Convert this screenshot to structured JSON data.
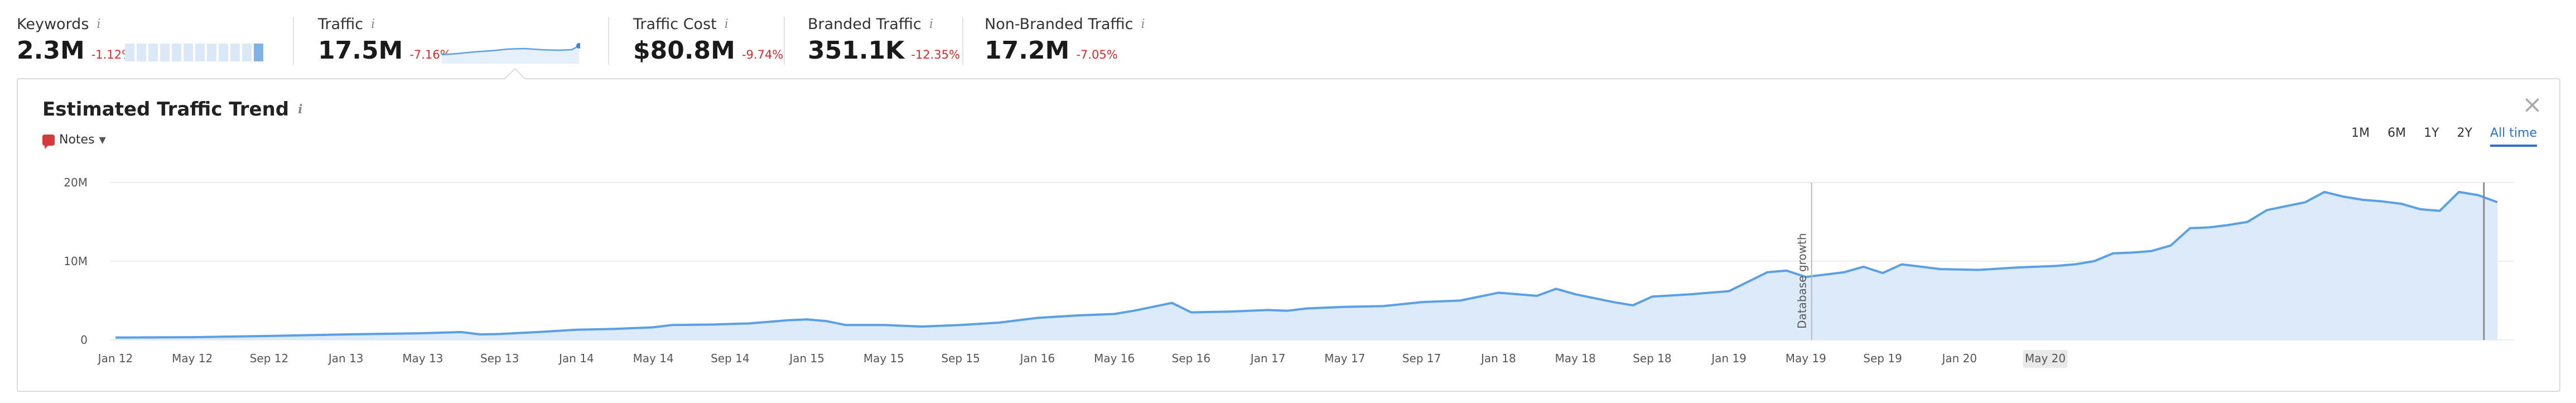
{
  "metrics": [
    {
      "label": "Keywords",
      "value": "2.3M",
      "delta": "-1.12%"
    },
    {
      "label": "Traffic",
      "value": "17.5M",
      "delta": "-7.16%"
    },
    {
      "label": "Traffic Cost",
      "value": "$80.8M",
      "delta": "-9.74%"
    },
    {
      "label": "Branded Traffic",
      "value": "351.1K",
      "delta": "-12.35%"
    },
    {
      "label": "Non-Branded Traffic",
      "value": "17.2M",
      "delta": "-7.05%"
    }
  ],
  "info_glyph": "i",
  "panel": {
    "title": "Estimated Traffic Trend",
    "notes_label": "Notes",
    "close_glyph": "×",
    "ranges": [
      "1M",
      "6M",
      "1Y",
      "2Y",
      "All time"
    ],
    "active_range": "All time"
  },
  "colors": {
    "accent": "#2f6fd1",
    "line": "#5aa0e6",
    "fill": "#dceafa",
    "negative": "#d92b2b"
  },
  "icons": {
    "close": "close-icon",
    "notes": "notes-icon",
    "info": "info-icon",
    "chevron": "chevron-down-icon"
  },
  "chart_data": {
    "type": "area",
    "title": "Estimated Traffic Trend",
    "xlabel": "",
    "ylabel": "",
    "x_ticks": [
      "Jan 12",
      "May 12",
      "Sep 12",
      "Jan 13",
      "May 13",
      "Sep 13",
      "Jan 14",
      "May 14",
      "Sep 14",
      "Jan 15",
      "May 15",
      "Sep 15",
      "Jan 16",
      "May 16",
      "Sep 16",
      "Jan 17",
      "May 17",
      "Sep 17",
      "Jan 18",
      "May 18",
      "Sep 18",
      "Jan 19",
      "May 19",
      "Sep 19",
      "Jan 20",
      "May 20"
    ],
    "y_ticks": [
      "20M",
      "10M",
      "0"
    ],
    "ylim": [
      0,
      20000000
    ],
    "grid": true,
    "annotation": {
      "label": "Database growth",
      "at_month": 88.3
    },
    "series": [
      {
        "values": [
          {
            "m": 0,
            "v": 0.3
          },
          {
            "m": 4,
            "v": 0.35
          },
          {
            "m": 8,
            "v": 0.5
          },
          {
            "m": 12,
            "v": 0.7
          },
          {
            "m": 16,
            "v": 0.85
          },
          {
            "m": 18,
            "v": 1.0
          },
          {
            "m": 19,
            "v": 0.7
          },
          {
            "m": 20,
            "v": 0.75
          },
          {
            "m": 22,
            "v": 1.0
          },
          {
            "m": 24,
            "v": 1.3
          },
          {
            "m": 26,
            "v": 1.4
          },
          {
            "m": 28,
            "v": 1.6
          },
          {
            "m": 29,
            "v": 1.9
          },
          {
            "m": 31,
            "v": 1.95
          },
          {
            "m": 33,
            "v": 2.1
          },
          {
            "m": 35,
            "v": 2.5
          },
          {
            "m": 36,
            "v": 2.6
          },
          {
            "m": 37,
            "v": 2.4
          },
          {
            "m": 38,
            "v": 1.9
          },
          {
            "m": 40,
            "v": 1.9
          },
          {
            "m": 42,
            "v": 1.7
          },
          {
            "m": 44,
            "v": 1.9
          },
          {
            "m": 46,
            "v": 2.2
          },
          {
            "m": 48,
            "v": 2.8
          },
          {
            "m": 50,
            "v": 3.1
          },
          {
            "m": 52,
            "v": 3.3
          },
          {
            "m": 53,
            "v": 3.7
          },
          {
            "m": 54,
            "v": 4.2
          },
          {
            "m": 55,
            "v": 4.7
          },
          {
            "m": 56,
            "v": 3.5
          },
          {
            "m": 58,
            "v": 3.6
          },
          {
            "m": 60,
            "v": 3.8
          },
          {
            "m": 61,
            "v": 3.7
          },
          {
            "m": 62,
            "v": 4.0
          },
          {
            "m": 64,
            "v": 4.2
          },
          {
            "m": 66,
            "v": 4.3
          },
          {
            "m": 68,
            "v": 4.8
          },
          {
            "m": 70,
            "v": 5.0
          },
          {
            "m": 72,
            "v": 6.0
          },
          {
            "m": 74,
            "v": 5.6
          },
          {
            "m": 75,
            "v": 6.5
          },
          {
            "m": 76,
            "v": 5.8
          },
          {
            "m": 78,
            "v": 4.8
          },
          {
            "m": 79,
            "v": 4.4
          },
          {
            "m": 80,
            "v": 5.5
          },
          {
            "m": 82,
            "v": 5.8
          },
          {
            "m": 84,
            "v": 6.2
          },
          {
            "m": 85,
            "v": 7.4
          },
          {
            "m": 86,
            "v": 8.6
          },
          {
            "m": 87,
            "v": 8.8
          },
          {
            "m": 88,
            "v": 8.0
          },
          {
            "m": 90,
            "v": 8.6
          },
          {
            "m": 91,
            "v": 9.3
          },
          {
            "m": 92,
            "v": 8.5
          },
          {
            "m": 93,
            "v": 9.6
          },
          {
            "m": 95,
            "v": 9.0
          },
          {
            "m": 97,
            "v": 8.9
          },
          {
            "m": 99,
            "v": 9.2
          },
          {
            "m": 101,
            "v": 9.4
          },
          {
            "m": 102,
            "v": 9.6
          },
          {
            "m": 103,
            "v": 10.0
          },
          {
            "m": 104,
            "v": 11.0
          },
          {
            "m": 105,
            "v": 11.1
          },
          {
            "m": 106,
            "v": 11.3
          },
          {
            "m": 107,
            "v": 12.0
          },
          {
            "m": 108,
            "v": 14.2
          },
          {
            "m": 109,
            "v": 14.3
          },
          {
            "m": 110,
            "v": 14.6
          },
          {
            "m": 111,
            "v": 15.0
          },
          {
            "m": 112,
            "v": 16.5
          },
          {
            "m": 113,
            "v": 17.0
          },
          {
            "m": 114,
            "v": 17.5
          },
          {
            "m": 115,
            "v": 18.8
          },
          {
            "m": 116,
            "v": 18.2
          },
          {
            "m": 117,
            "v": 17.8
          },
          {
            "m": 118,
            "v": 17.6
          },
          {
            "m": 119,
            "v": 17.3
          },
          {
            "m": 120,
            "v": 16.6
          },
          {
            "m": 121,
            "v": 16.4
          },
          {
            "m": 122,
            "v": 18.8
          },
          {
            "m": 123,
            "v": 18.4
          },
          {
            "m": 124,
            "v": 17.5
          }
        ]
      }
    ]
  }
}
